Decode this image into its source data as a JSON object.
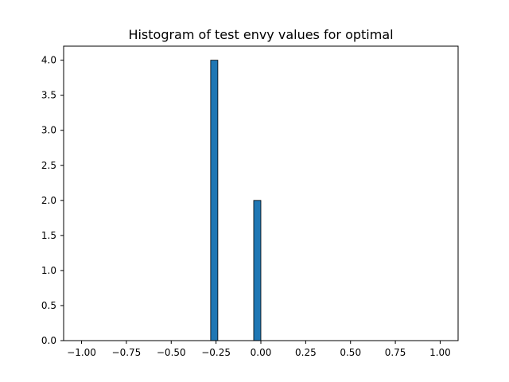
{
  "chart_data": {
    "type": "bar",
    "title": "Histogram of test envy values for optimal",
    "xlabel": "",
    "ylabel": "",
    "xlim": [
      -1.1,
      1.1
    ],
    "ylim": [
      0,
      4.2
    ],
    "grid": false,
    "x_ticks": [
      "−1.00",
      "−0.75",
      "−0.50",
      "−0.25",
      "0.00",
      "0.25",
      "0.50",
      "0.75",
      "1.00"
    ],
    "x_tick_values": [
      -1.0,
      -0.75,
      -0.5,
      -0.25,
      0.0,
      0.25,
      0.5,
      0.75,
      1.0
    ],
    "y_ticks": [
      "0.0",
      "0.5",
      "1.0",
      "1.5",
      "2.0",
      "2.5",
      "3.0",
      "3.5",
      "4.0"
    ],
    "y_tick_values": [
      0.0,
      0.5,
      1.0,
      1.5,
      2.0,
      2.5,
      3.0,
      3.5,
      4.0
    ],
    "bars": [
      {
        "x_start": -0.28,
        "x_end": -0.24,
        "value": 4
      },
      {
        "x_start": -0.04,
        "x_end": 0.0,
        "value": 2
      }
    ],
    "bar_color": "#1f77b4",
    "edge_color": "#000000"
  }
}
